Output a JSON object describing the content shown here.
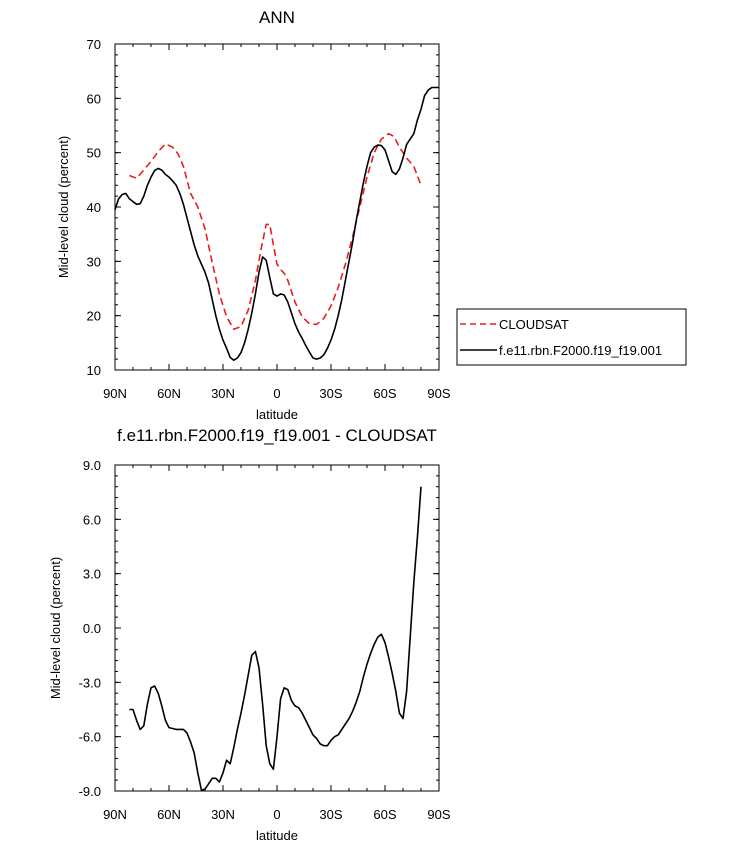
{
  "chart_data": [
    {
      "type": "line",
      "title": "ANN",
      "xlabel": "latitude",
      "ylabel": "Mid-level cloud (percent)",
      "xlim": [
        -90,
        90
      ],
      "ylim": [
        10,
        70
      ],
      "x_ticks": [
        {
          "value": -90,
          "label": "90N"
        },
        {
          "value": -60,
          "label": "60N"
        },
        {
          "value": -30,
          "label": "30N"
        },
        {
          "value": 0,
          "label": "0"
        },
        {
          "value": 30,
          "label": "30S"
        },
        {
          "value": 60,
          "label": "60S"
        },
        {
          "value": 90,
          "label": "90S"
        }
      ],
      "y_ticks": [
        {
          "value": 10,
          "label": "10"
        },
        {
          "value": 20,
          "label": "20"
        },
        {
          "value": 30,
          "label": "30"
        },
        {
          "value": 40,
          "label": "40"
        },
        {
          "value": 50,
          "label": "50"
        },
        {
          "value": 60,
          "label": "60"
        },
        {
          "value": 70,
          "label": "70"
        }
      ],
      "legend_position": "right-outside",
      "series": [
        {
          "name": "CLOUDSAT",
          "color": "#e8201c",
          "dash": "dashed",
          "x": [
            -82,
            -78,
            -74,
            -70,
            -66,
            -62,
            -58,
            -55,
            -52,
            -48,
            -44,
            -40,
            -36,
            -32,
            -28,
            -24,
            -20,
            -16,
            -12,
            -9,
            -6,
            -4,
            -2,
            0,
            2,
            4,
            6,
            10,
            14,
            18,
            22,
            26,
            30,
            34,
            38,
            42,
            46,
            50,
            54,
            58,
            62,
            65,
            68,
            72,
            76,
            80
          ],
          "y": [
            45.8,
            45.3,
            46.8,
            48.4,
            50.2,
            51.6,
            51.0,
            49.8,
            47.5,
            42.5,
            40.0,
            36.0,
            29.8,
            24.0,
            19.8,
            17.5,
            18.0,
            21.0,
            26.5,
            32.0,
            36.8,
            36.8,
            33.0,
            29.5,
            28.5,
            27.8,
            26.5,
            22.5,
            19.8,
            18.5,
            18.4,
            19.5,
            21.8,
            25.2,
            29.5,
            34.5,
            40.0,
            45.5,
            50.0,
            52.5,
            53.5,
            53.0,
            51.0,
            49.0,
            47.5,
            44.0
          ]
        },
        {
          "name": "f.e11.rbn.F2000.f19_f19.001",
          "color": "#000000",
          "dash": "solid",
          "x": [
            -90,
            -88,
            -86,
            -84,
            -82,
            -80,
            -78,
            -76,
            -74,
            -72,
            -70,
            -68,
            -66,
            -64,
            -62,
            -60,
            -58,
            -56,
            -54,
            -52,
            -50,
            -48,
            -46,
            -44,
            -42,
            -40,
            -38,
            -36,
            -34,
            -32,
            -30,
            -28,
            -26,
            -24,
            -22,
            -20,
            -18,
            -16,
            -14,
            -12,
            -10,
            -8,
            -6,
            -4,
            -2,
            0,
            2,
            4,
            6,
            8,
            10,
            12,
            14,
            16,
            18,
            20,
            22,
            24,
            26,
            28,
            30,
            32,
            34,
            36,
            38,
            40,
            42,
            44,
            46,
            48,
            50,
            52,
            54,
            56,
            58,
            60,
            62,
            64,
            66,
            68,
            70,
            72,
            74,
            76,
            78,
            80,
            82,
            84,
            86,
            88,
            90
          ],
          "y": [
            39.5,
            41.5,
            42.3,
            42.5,
            41.5,
            41.0,
            40.5,
            40.6,
            42.0,
            44.0,
            45.5,
            46.7,
            47.1,
            46.8,
            46.0,
            45.5,
            44.8,
            44.0,
            42.5,
            40.5,
            38.0,
            35.5,
            33.0,
            31.0,
            29.5,
            28.0,
            26.0,
            23.0,
            20.0,
            17.5,
            15.5,
            14.0,
            12.3,
            11.8,
            12.2,
            13.2,
            15.0,
            17.5,
            20.5,
            24.0,
            28.0,
            30.8,
            30.2,
            27.0,
            24.0,
            23.6,
            24.0,
            23.8,
            22.5,
            20.5,
            18.5,
            17.0,
            15.8,
            14.5,
            13.3,
            12.2,
            12.0,
            12.2,
            12.8,
            14.0,
            15.5,
            17.5,
            20.0,
            23.0,
            26.5,
            30.0,
            33.5,
            37.5,
            41.0,
            44.5,
            47.5,
            50.0,
            51.0,
            51.4,
            51.3,
            50.5,
            48.5,
            46.5,
            46.0,
            47.0,
            49.0,
            51.5,
            52.5,
            53.5,
            56.0,
            58.0,
            60.5,
            61.5,
            62.0,
            62.0,
            62.0
          ]
        }
      ]
    },
    {
      "type": "line",
      "title": "f.e11.rbn.F2000.f19_f19.001 - CLOUDSAT",
      "xlabel": "latitude",
      "ylabel": "Mid-level cloud (percent)",
      "xlim": [
        -90,
        90
      ],
      "ylim": [
        -9,
        9
      ],
      "x_ticks": [
        {
          "value": -90,
          "label": "90N"
        },
        {
          "value": -60,
          "label": "60N"
        },
        {
          "value": -30,
          "label": "30N"
        },
        {
          "value": 0,
          "label": "0"
        },
        {
          "value": 30,
          "label": "30S"
        },
        {
          "value": 60,
          "label": "60S"
        },
        {
          "value": 90,
          "label": "90S"
        }
      ],
      "y_ticks": [
        {
          "value": -9,
          "label": "-9.0"
        },
        {
          "value": -6,
          "label": "-6.0"
        },
        {
          "value": -3,
          "label": "-3.0"
        },
        {
          "value": 0,
          "label": "0.0"
        },
        {
          "value": 3,
          "label": "3.0"
        },
        {
          "value": 6,
          "label": "6.0"
        },
        {
          "value": 9,
          "label": "9.0"
        }
      ],
      "series": [
        {
          "name": "",
          "color": "#000000",
          "dash": "solid",
          "x": [
            -82,
            -80,
            -78,
            -76,
            -74,
            -72,
            -70,
            -68,
            -66,
            -64,
            -62,
            -60,
            -58,
            -56,
            -54,
            -52,
            -50,
            -48,
            -46,
            -44,
            -42,
            -40,
            -38,
            -36,
            -34,
            -32,
            -30,
            -28,
            -26,
            -24,
            -22,
            -20,
            -18,
            -16,
            -14,
            -12,
            -10,
            -8,
            -6,
            -4,
            -2,
            0,
            2,
            4,
            6,
            8,
            10,
            12,
            14,
            16,
            18,
            20,
            22,
            24,
            26,
            28,
            30,
            32,
            34,
            36,
            38,
            40,
            42,
            44,
            46,
            48,
            50,
            52,
            54,
            56,
            58,
            60,
            62,
            64,
            66,
            68,
            70,
            72,
            74,
            76,
            78,
            80
          ],
          "y": [
            -4.5,
            -4.5,
            -5.1,
            -5.6,
            -5.4,
            -4.2,
            -3.3,
            -3.2,
            -3.6,
            -4.3,
            -5.1,
            -5.5,
            -5.55,
            -5.6,
            -5.6,
            -5.6,
            -5.8,
            -6.3,
            -6.9,
            -8.0,
            -8.95,
            -8.9,
            -8.6,
            -8.3,
            -8.3,
            -8.5,
            -8.0,
            -7.3,
            -7.5,
            -6.6,
            -5.6,
            -4.7,
            -3.7,
            -2.6,
            -1.5,
            -1.3,
            -2.2,
            -4.2,
            -6.5,
            -7.5,
            -7.8,
            -6.0,
            -3.9,
            -3.3,
            -3.4,
            -4.0,
            -4.3,
            -4.4,
            -4.7,
            -5.1,
            -5.5,
            -5.9,
            -6.1,
            -6.4,
            -6.5,
            -6.5,
            -6.2,
            -6.0,
            -5.9,
            -5.6,
            -5.3,
            -5.0,
            -4.6,
            -4.1,
            -3.5,
            -2.7,
            -2.0,
            -1.4,
            -0.9,
            -0.5,
            -0.35,
            -0.8,
            -1.6,
            -2.5,
            -3.5,
            -4.7,
            -5.0,
            -3.5,
            -0.5,
            2.5,
            5.0,
            7.8
          ]
        }
      ]
    }
  ]
}
